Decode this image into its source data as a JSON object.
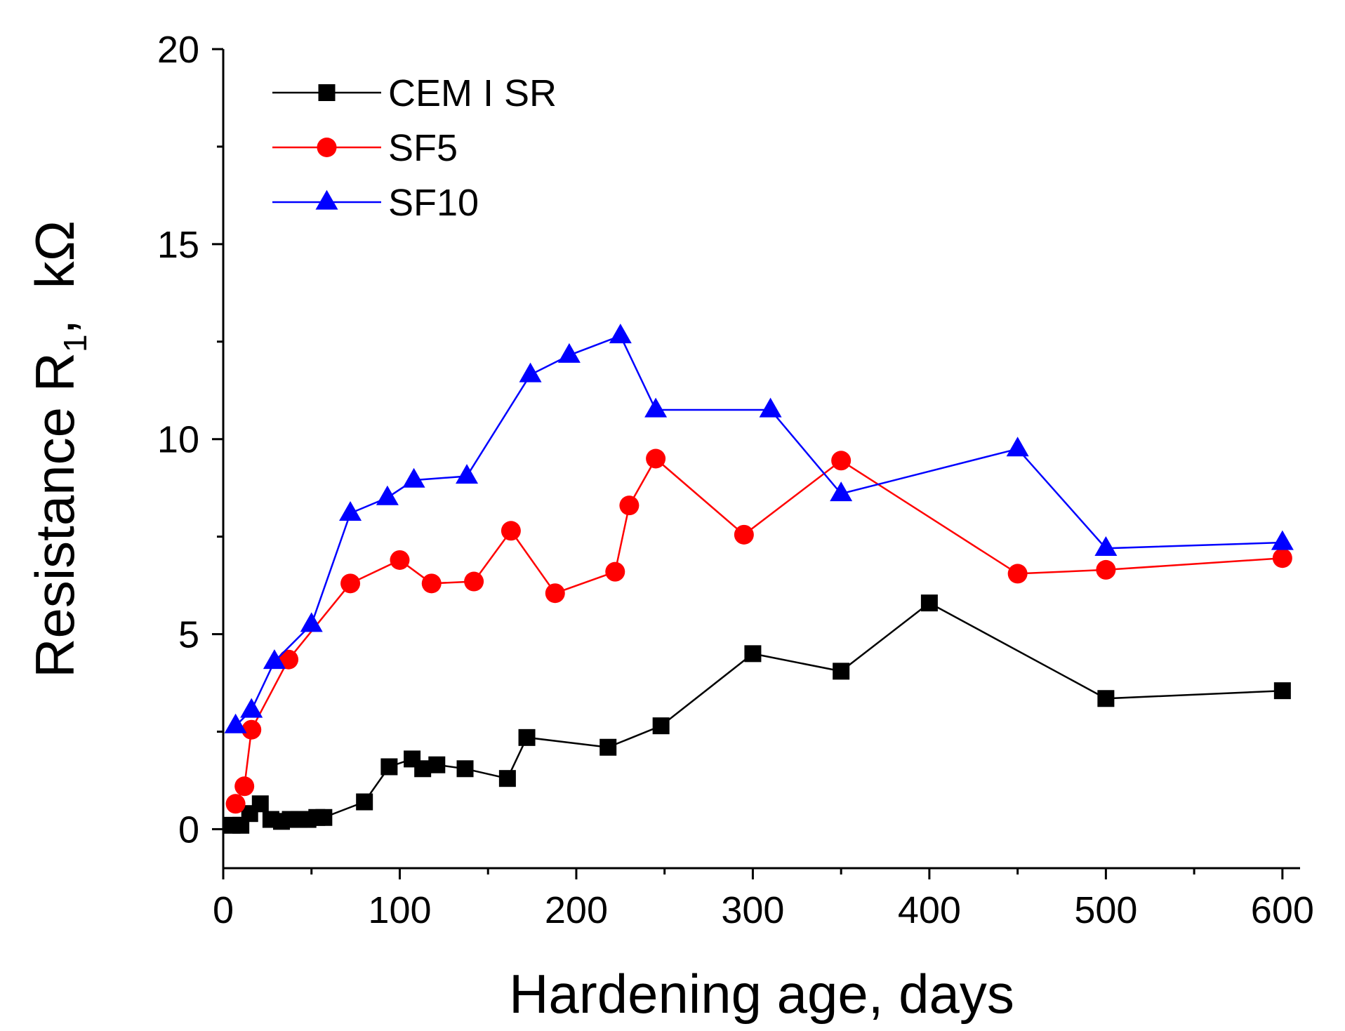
{
  "chart_data": {
    "type": "line",
    "title": "",
    "xlabel": "Hardening age, days",
    "ylabel": {
      "main": "Resistance R",
      "subscript": "1",
      "unit": ",  kΩ"
    },
    "xlim": [
      0,
      610
    ],
    "ylim": [
      -1,
      20
    ],
    "xticks": [
      0,
      100,
      200,
      300,
      400,
      500,
      600
    ],
    "yticks": [
      0,
      5,
      10,
      15,
      20
    ],
    "legend_position": "top-left",
    "series": [
      {
        "name": "CEM I SR",
        "color": "#000000",
        "marker": "square",
        "points": [
          [
            5,
            0.1
          ],
          [
            10,
            0.1
          ],
          [
            15,
            0.4
          ],
          [
            21,
            0.65
          ],
          [
            27,
            0.25
          ],
          [
            33,
            0.2
          ],
          [
            38,
            0.25
          ],
          [
            43,
            0.25
          ],
          [
            48,
            0.25
          ],
          [
            53,
            0.3
          ],
          [
            57,
            0.3
          ],
          [
            80,
            0.7
          ],
          [
            94,
            1.6
          ],
          [
            107,
            1.8
          ],
          [
            113,
            1.55
          ],
          [
            121,
            1.65
          ],
          [
            137,
            1.55
          ],
          [
            161,
            1.3
          ],
          [
            172,
            2.35
          ],
          [
            218,
            2.1
          ],
          [
            248,
            2.65
          ],
          [
            300,
            4.5
          ],
          [
            350,
            4.05
          ],
          [
            400,
            5.8
          ],
          [
            500,
            3.35
          ],
          [
            600,
            3.55
          ]
        ]
      },
      {
        "name": "SF5",
        "color": "#ff0000",
        "marker": "circle",
        "points": [
          [
            7,
            0.65
          ],
          [
            12,
            1.1
          ],
          [
            16,
            2.55
          ],
          [
            37,
            4.35
          ],
          [
            72,
            6.3
          ],
          [
            100,
            6.9
          ],
          [
            118,
            6.3
          ],
          [
            142,
            6.35
          ],
          [
            163,
            7.65
          ],
          [
            188,
            6.05
          ],
          [
            222,
            6.6
          ],
          [
            230,
            8.3
          ],
          [
            245,
            9.5
          ],
          [
            295,
            7.55
          ],
          [
            350,
            9.45
          ],
          [
            450,
            6.55
          ],
          [
            500,
            6.65
          ],
          [
            600,
            6.95
          ]
        ]
      },
      {
        "name": "SF10",
        "color": "#0000ff",
        "marker": "triangle",
        "points": [
          [
            7,
            2.65
          ],
          [
            16,
            3.05
          ],
          [
            29,
            4.3
          ],
          [
            50,
            5.25
          ],
          [
            72,
            8.1
          ],
          [
            93,
            8.5
          ],
          [
            108,
            8.95
          ],
          [
            138,
            9.05
          ],
          [
            174,
            11.65
          ],
          [
            196,
            12.15
          ],
          [
            225,
            12.65
          ],
          [
            245,
            10.75
          ],
          [
            310,
            10.75
          ],
          [
            350,
            8.6
          ],
          [
            450,
            9.75
          ],
          [
            500,
            7.2
          ],
          [
            600,
            7.35
          ]
        ]
      }
    ]
  }
}
